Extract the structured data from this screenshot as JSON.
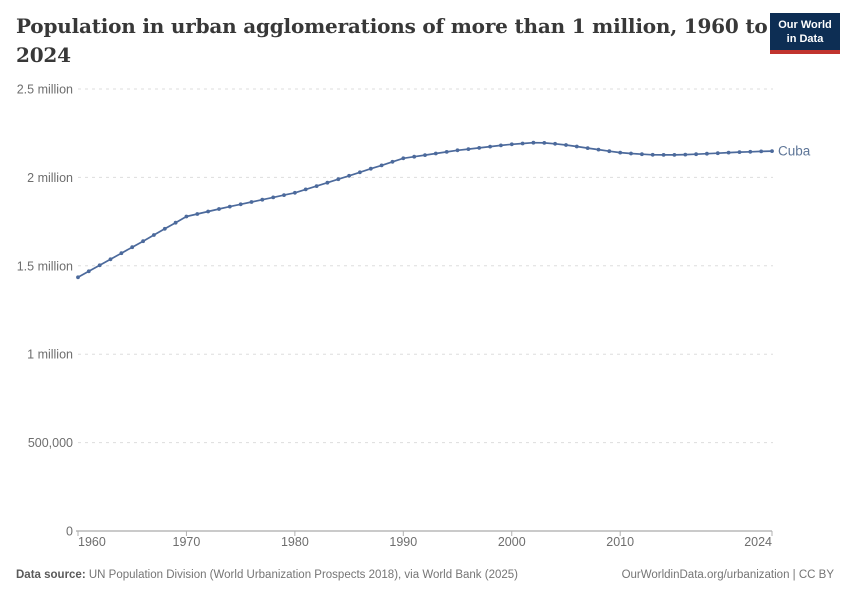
{
  "header": {
    "title_line1": "Population in urban agglomerations of more than 1 million, 1960 to",
    "title_line2": "2024",
    "logo_line1": "Our World",
    "logo_line2": "in Data"
  },
  "colors": {
    "line": "#4c6a9c",
    "entity_label": "#5e7698",
    "grid": "#dddddd",
    "axis": "#949494",
    "tick": "#b0b0b0",
    "tick_label": "#6e6e6e",
    "title": "#383838",
    "logo_bg": "#0d2e54",
    "logo_red": "#c1342e"
  },
  "chart_data": {
    "type": "line",
    "title": "Population in urban agglomerations of more than 1 million, 1960 to 2024",
    "xlabel": "",
    "ylabel": "",
    "xlim": [
      1960,
      2024
    ],
    "ylim": [
      0,
      2500000
    ],
    "grid": "horizontal-dashed",
    "legend_position": "end-of-line",
    "xticks": [
      {
        "value": 1960,
        "label": "1960"
      },
      {
        "value": 1970,
        "label": "1970"
      },
      {
        "value": 1980,
        "label": "1980"
      },
      {
        "value": 1990,
        "label": "1990"
      },
      {
        "value": 2000,
        "label": "2000"
      },
      {
        "value": 2010,
        "label": "2010"
      },
      {
        "value": 2024,
        "label": "2024"
      }
    ],
    "yticks": [
      {
        "value": 0,
        "label": "0"
      },
      {
        "value": 500000,
        "label": "500,000"
      },
      {
        "value": 1000000,
        "label": "1 million"
      },
      {
        "value": 1500000,
        "label": "1.5 million"
      },
      {
        "value": 2000000,
        "label": "2 million"
      },
      {
        "value": 2500000,
        "label": "2.5 million"
      }
    ],
    "series": [
      {
        "name": "Cuba",
        "x_start": 1960,
        "x_step": 1,
        "values": [
          1435000,
          1469000,
          1503000,
          1537000,
          1571000,
          1605000,
          1639000,
          1674000,
          1709000,
          1744000,
          1779000,
          1793000,
          1807000,
          1821000,
          1835000,
          1848000,
          1861000,
          1874000,
          1887000,
          1900000,
          1913000,
          1932000,
          1951000,
          1970000,
          1990000,
          2009000,
          2029000,
          2049000,
          2068000,
          2088000,
          2108000,
          2117000,
          2126000,
          2135000,
          2144000,
          2153000,
          2160000,
          2167000,
          2174000,
          2181000,
          2187000,
          2192000,
          2196000,
          2195000,
          2190000,
          2183000,
          2175000,
          2166000,
          2157000,
          2148000,
          2140000,
          2135000,
          2131000,
          2128000,
          2127000,
          2127000,
          2129000,
          2131000,
          2134000,
          2137000,
          2140000,
          2143000,
          2145000,
          2147000,
          2149000
        ]
      }
    ]
  },
  "footer": {
    "data_source_label": "Data source:",
    "data_source_text": "UN Population Division (World Urbanization Prospects 2018), via World Bank (2025)",
    "attribution": "OurWorldinData.org/urbanization | CC BY"
  }
}
